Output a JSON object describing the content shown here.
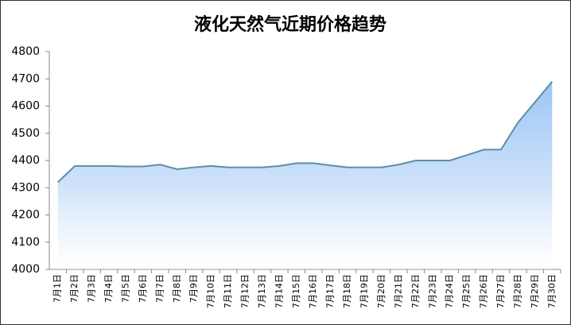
{
  "chart_data": {
    "type": "area",
    "title": "液化天然气近期价格趋势",
    "categories": [
      "7月1日",
      "7月2日",
      "7月3日",
      "7月4日",
      "7月5日",
      "7月6日",
      "7月7日",
      "7月8日",
      "7月9日",
      "7月10日",
      "7月11日",
      "7月12日",
      "7月13日",
      "7月14日",
      "7月15日",
      "7月16日",
      "7月17日",
      "7月18日",
      "7月19日",
      "7月20日",
      "7月21日",
      "7月22日",
      "7月23日",
      "7月24日",
      "7月25日",
      "7月26日",
      "7月27日",
      "7月28日",
      "7月29日",
      "7月30日"
    ],
    "values": [
      4320,
      4380,
      4380,
      4380,
      4378,
      4378,
      4385,
      4368,
      4375,
      4380,
      4375,
      4375,
      4375,
      4380,
      4390,
      4390,
      4382,
      4375,
      4375,
      4375,
      4385,
      4400,
      4400,
      4400,
      4420,
      4440,
      4440,
      4540,
      4615,
      4690
    ],
    "color": "#5b8fa8",
    "fill_color": "#9ec5f5",
    "ylim": [
      4000,
      4800
    ],
    "yticks": [
      4000,
      4100,
      4200,
      4300,
      4400,
      4500,
      4600,
      4700,
      4800
    ]
  }
}
